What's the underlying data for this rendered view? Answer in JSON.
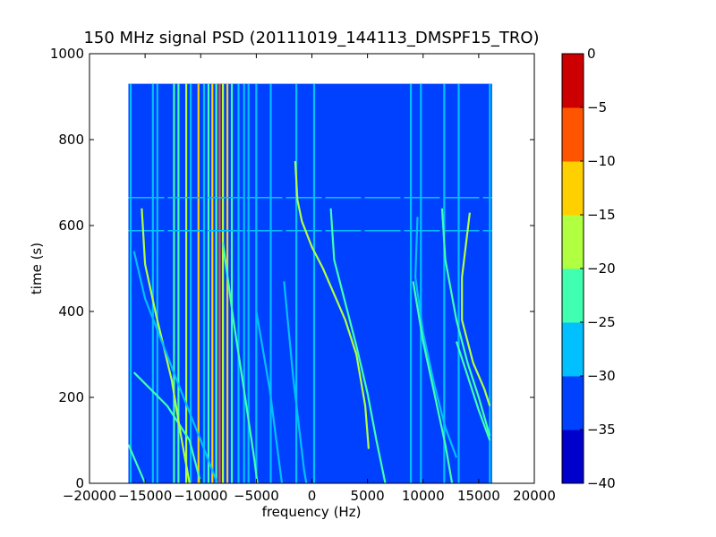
{
  "chart_data": {
    "type": "heatmap",
    "title": "150 MHz signal PSD (20111019_144113_DMSPF15_TRO)",
    "xlabel": "frequency (Hz)",
    "ylabel": "time (s)",
    "xlim": [
      -20000,
      20000
    ],
    "ylim": [
      0,
      1000
    ],
    "xticks": [
      -20000,
      -15000,
      -10000,
      -5000,
      0,
      5000,
      10000,
      15000,
      20000
    ],
    "xtick_labels": [
      "−20000",
      "−15000",
      "−10000",
      "−5000",
      "0",
      "5000",
      "10000",
      "15000",
      "20000"
    ],
    "yticks": [
      0,
      200,
      400,
      600,
      800,
      1000
    ],
    "ytick_labels": [
      "0",
      "200",
      "400",
      "600",
      "800",
      "1000"
    ],
    "data_extent": {
      "x": [
        -16500,
        16200
      ],
      "y": [
        0,
        930
      ]
    },
    "background_level": -33,
    "colorbar": {
      "levels": [
        -40,
        -35,
        -30,
        -25,
        -20,
        -15,
        -10,
        -5,
        0
      ],
      "tick_labels": [
        "−40",
        "−35",
        "−30",
        "−25",
        "−20",
        "−15",
        "−10",
        "−5",
        "0"
      ],
      "colors": [
        "#0000cc",
        "#0040ff",
        "#00c0ff",
        "#40ffb0",
        "#b0ff40",
        "#ffd000",
        "#ff5500",
        "#cc0000"
      ]
    },
    "vertical_carriers": [
      {
        "f": -16300,
        "level": -28
      },
      {
        "f": -14300,
        "level": -28
      },
      {
        "f": -13900,
        "level": -26
      },
      {
        "f": -12400,
        "level": -22
      },
      {
        "f": -12000,
        "level": -24
      },
      {
        "f": -11300,
        "level": -18
      },
      {
        "f": -10900,
        "level": -26
      },
      {
        "f": -10200,
        "level": -14
      },
      {
        "f": -9700,
        "level": -26
      },
      {
        "f": -9300,
        "level": -24
      },
      {
        "f": -8950,
        "level": -12
      },
      {
        "f": -8600,
        "level": -22
      },
      {
        "f": -8300,
        "level": -6
      },
      {
        "f": -8000,
        "level": -18
      },
      {
        "f": -7600,
        "level": -14
      },
      {
        "f": -7200,
        "level": -24
      },
      {
        "f": -6600,
        "level": -26
      },
      {
        "f": -6100,
        "level": -28
      },
      {
        "f": -5700,
        "level": -26
      },
      {
        "f": -5000,
        "level": -28
      },
      {
        "f": -3700,
        "level": -28
      },
      {
        "f": -1400,
        "level": -28
      },
      {
        "f": 200,
        "level": -28
      },
      {
        "f": 8900,
        "level": -28
      },
      {
        "f": 9800,
        "level": -28
      },
      {
        "f": 11900,
        "level": -28
      },
      {
        "f": 13200,
        "level": -28
      },
      {
        "f": 16000,
        "level": -28
      }
    ],
    "horizontal_lines": [
      {
        "t": 665,
        "level": -26
      },
      {
        "t": 588,
        "level": -26
      }
    ],
    "drifting_signals": [
      {
        "level": -22,
        "points": [
          [
            -16000,
            258
          ],
          [
            -13000,
            180
          ],
          [
            -11000,
            100
          ],
          [
            -10000,
            0
          ]
        ]
      },
      {
        "level": -24,
        "points": [
          [
            -16500,
            90
          ],
          [
            -15000,
            0
          ]
        ]
      },
      {
        "level": -18,
        "points": [
          [
            -15300,
            640
          ],
          [
            -15000,
            510
          ],
          [
            -14000,
            390
          ],
          [
            -12600,
            240
          ],
          [
            -11700,
            100
          ],
          [
            -11000,
            0
          ]
        ]
      },
      {
        "level": -26,
        "points": [
          [
            -16000,
            540
          ],
          [
            -15000,
            430
          ],
          [
            -13500,
            330
          ],
          [
            -12000,
            230
          ],
          [
            -10000,
            100
          ],
          [
            -8500,
            0
          ]
        ]
      },
      {
        "level": -24,
        "points": [
          [
            -8000,
            560
          ],
          [
            -7000,
            370
          ],
          [
            -6000,
            200
          ],
          [
            -5200,
            60
          ],
          [
            -4900,
            0
          ]
        ]
      },
      {
        "level": -26,
        "points": [
          [
            -5000,
            400
          ],
          [
            -3800,
            220
          ],
          [
            -3200,
            100
          ],
          [
            -2700,
            0
          ]
        ]
      },
      {
        "level": -26,
        "points": [
          [
            -2500,
            470
          ],
          [
            -1700,
            250
          ],
          [
            -700,
            30
          ],
          [
            -500,
            0
          ]
        ]
      },
      {
        "level": -20,
        "points": [
          [
            -1500,
            750
          ],
          [
            -1300,
            660
          ],
          [
            -900,
            610
          ],
          [
            0,
            550
          ],
          [
            1000,
            500
          ],
          [
            2000,
            440
          ],
          [
            3000,
            380
          ],
          [
            4000,
            300
          ],
          [
            4800,
            180
          ],
          [
            5100,
            80
          ]
        ]
      },
      {
        "level": -24,
        "points": [
          [
            1700,
            640
          ],
          [
            2000,
            520
          ],
          [
            3000,
            420
          ],
          [
            4000,
            320
          ],
          [
            5000,
            210
          ],
          [
            5800,
            100
          ],
          [
            6600,
            0
          ]
        ]
      },
      {
        "level": -26,
        "points": [
          [
            9500,
            620
          ],
          [
            9300,
            480
          ],
          [
            10000,
            350
          ],
          [
            11000,
            230
          ],
          [
            12000,
            130
          ],
          [
            13000,
            60
          ]
        ]
      },
      {
        "level": -24,
        "points": [
          [
            9100,
            470
          ],
          [
            10000,
            330
          ],
          [
            11000,
            210
          ],
          [
            12000,
            90
          ],
          [
            12600,
            0
          ]
        ]
      },
      {
        "level": -24,
        "points": [
          [
            11700,
            640
          ],
          [
            12000,
            520
          ],
          [
            13000,
            380
          ],
          [
            14000,
            280
          ],
          [
            15000,
            200
          ],
          [
            16000,
            110
          ]
        ]
      },
      {
        "level": -20,
        "points": [
          [
            14200,
            630
          ],
          [
            13500,
            480
          ],
          [
            13500,
            380
          ],
          [
            14500,
            280
          ],
          [
            15500,
            220
          ],
          [
            16000,
            180
          ]
        ]
      },
      {
        "level": -24,
        "points": [
          [
            13000,
            330
          ],
          [
            14000,
            250
          ],
          [
            15000,
            170
          ],
          [
            16000,
            100
          ]
        ]
      }
    ]
  }
}
